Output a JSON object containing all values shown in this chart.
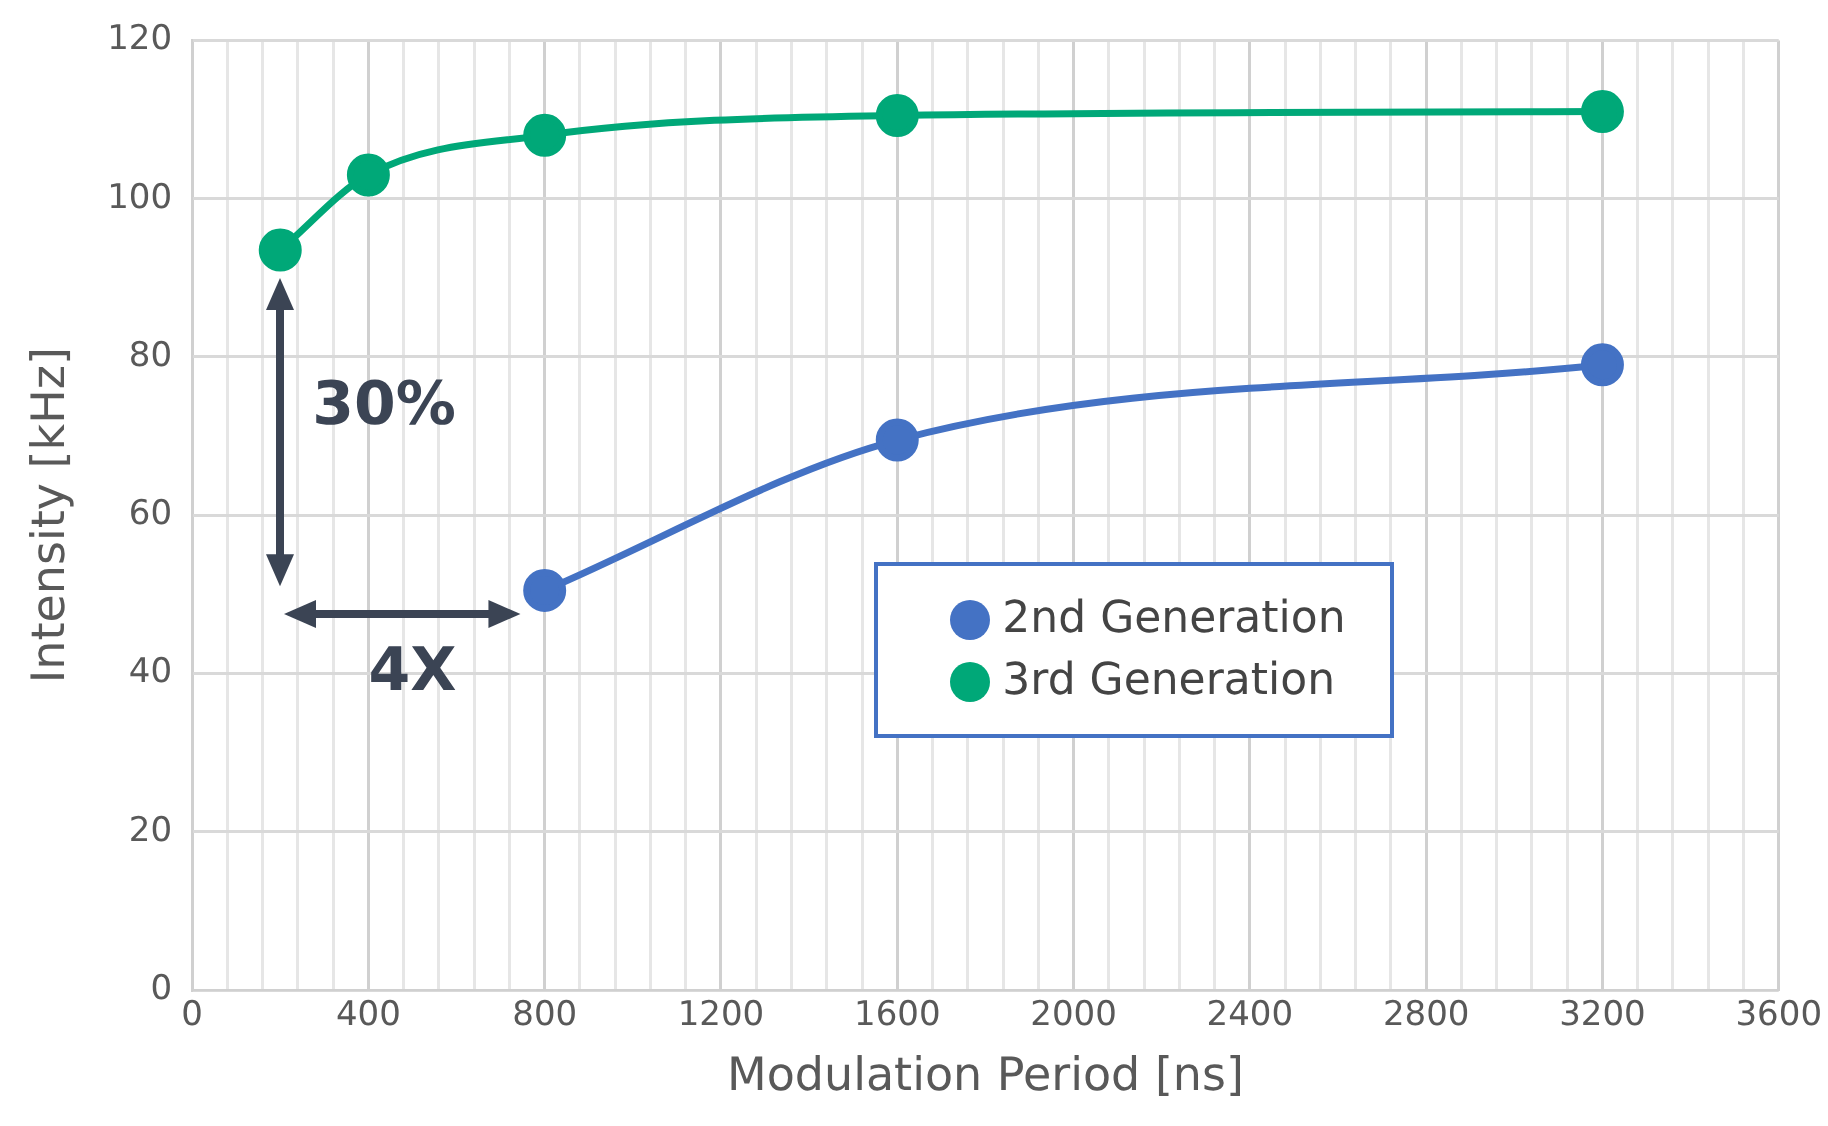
{
  "chart_data": {
    "type": "line",
    "xlabel": "Modulation Period [ns]",
    "ylabel": "Intensity [kHz]",
    "series": [
      {
        "name": "2nd Generation",
        "color": "#4472c4",
        "x": [
          800,
          1600,
          3200
        ],
        "values": [
          50.5,
          69.5,
          79
        ]
      },
      {
        "name": "3rd Generation",
        "color": "#00a878",
        "x": [
          200,
          400,
          800,
          1600,
          3200
        ],
        "values": [
          93.5,
          103,
          108,
          110.5,
          111
        ]
      }
    ],
    "xlim": [
      0,
      3600
    ],
    "xticks": [
      0,
      {
        "value": 80,
        "label": null
      },
      {
        "value": 160,
        "label": null
      },
      {
        "value": 240,
        "label": null
      },
      {
        "value": 320,
        "label": null
      },
      400,
      {
        "value": 480,
        "label": null
      },
      {
        "value": 560,
        "label": null
      },
      {
        "value": 640,
        "label": null
      },
      {
        "value": 720,
        "label": null
      },
      800,
      {
        "value": 880,
        "label": null
      },
      {
        "value": 960,
        "label": null
      },
      {
        "value": 1040,
        "label": null
      },
      {
        "value": 1120,
        "label": null
      },
      1200,
      {
        "value": 1280,
        "label": null
      },
      {
        "value": 1360,
        "label": null
      },
      {
        "value": 1440,
        "label": null
      },
      {
        "value": 1520,
        "label": null
      },
      1600,
      {
        "value": 1680,
        "label": null
      },
      {
        "value": 1760,
        "label": null
      },
      {
        "value": 1840,
        "label": null
      },
      {
        "value": 1920,
        "label": null
      },
      2000,
      {
        "value": 2080,
        "label": null
      },
      {
        "value": 2160,
        "label": null
      },
      {
        "value": 2240,
        "label": null
      },
      {
        "value": 2320,
        "label": null
      },
      2400,
      {
        "value": 2480,
        "label": null
      },
      {
        "value": 2560,
        "label": null
      },
      {
        "value": 2640,
        "label": null
      },
      {
        "value": 2720,
        "label": null
      },
      2800,
      {
        "value": 2880,
        "label": null
      },
      {
        "value": 2960,
        "label": null
      },
      {
        "value": 3040,
        "label": null
      },
      {
        "value": 3120,
        "label": null
      },
      3200,
      {
        "value": 3280,
        "label": null
      },
      {
        "value": 3360,
        "label": null
      },
      {
        "value": 3440,
        "label": null
      },
      {
        "value": 3520,
        "label": null
      },
      3600
    ],
    "ylim": [
      0,
      120
    ],
    "yticks": [
      0,
      20,
      40,
      60,
      80,
      100,
      120
    ],
    "grid": true,
    "legend": "right",
    "marker": "circle",
    "line_style": "solid",
    "annotations": [
      "30%",
      "4X"
    ]
  }
}
